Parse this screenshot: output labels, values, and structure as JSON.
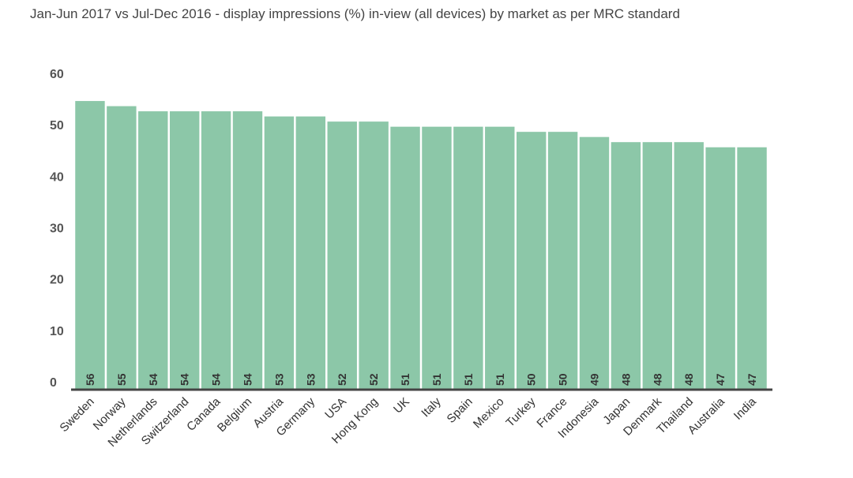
{
  "chart_data": {
    "type": "bar",
    "title": "Jan-Jun 2017 vs Jul-Dec 2016 - display impressions (%) in-view (all devices) by market as per MRC standard",
    "xlabel": "",
    "ylabel": "",
    "ylim": [
      0,
      60
    ],
    "yticks": [
      0,
      10,
      20,
      30,
      40,
      50,
      60
    ],
    "grid": false,
    "legend": "none",
    "categories": [
      "Sweden",
      "Norway",
      "Netherlands",
      "Switzerland",
      "Canada",
      "Belgium",
      "Austria",
      "Germany",
      "USA",
      "Hong Kong",
      "UK",
      "Italy",
      "Spain",
      "Mexico",
      "Turkey",
      "France",
      "Indonesia",
      "Japan",
      "Denmark",
      "Thailand",
      "Australia",
      "India"
    ],
    "values": [
      56,
      55,
      54,
      54,
      54,
      54,
      53,
      53,
      52,
      52,
      51,
      51,
      51,
      51,
      50,
      50,
      49,
      48,
      48,
      48,
      47,
      47
    ],
    "bar_color": "#8cc7a8",
    "axis_color": "#444444"
  }
}
